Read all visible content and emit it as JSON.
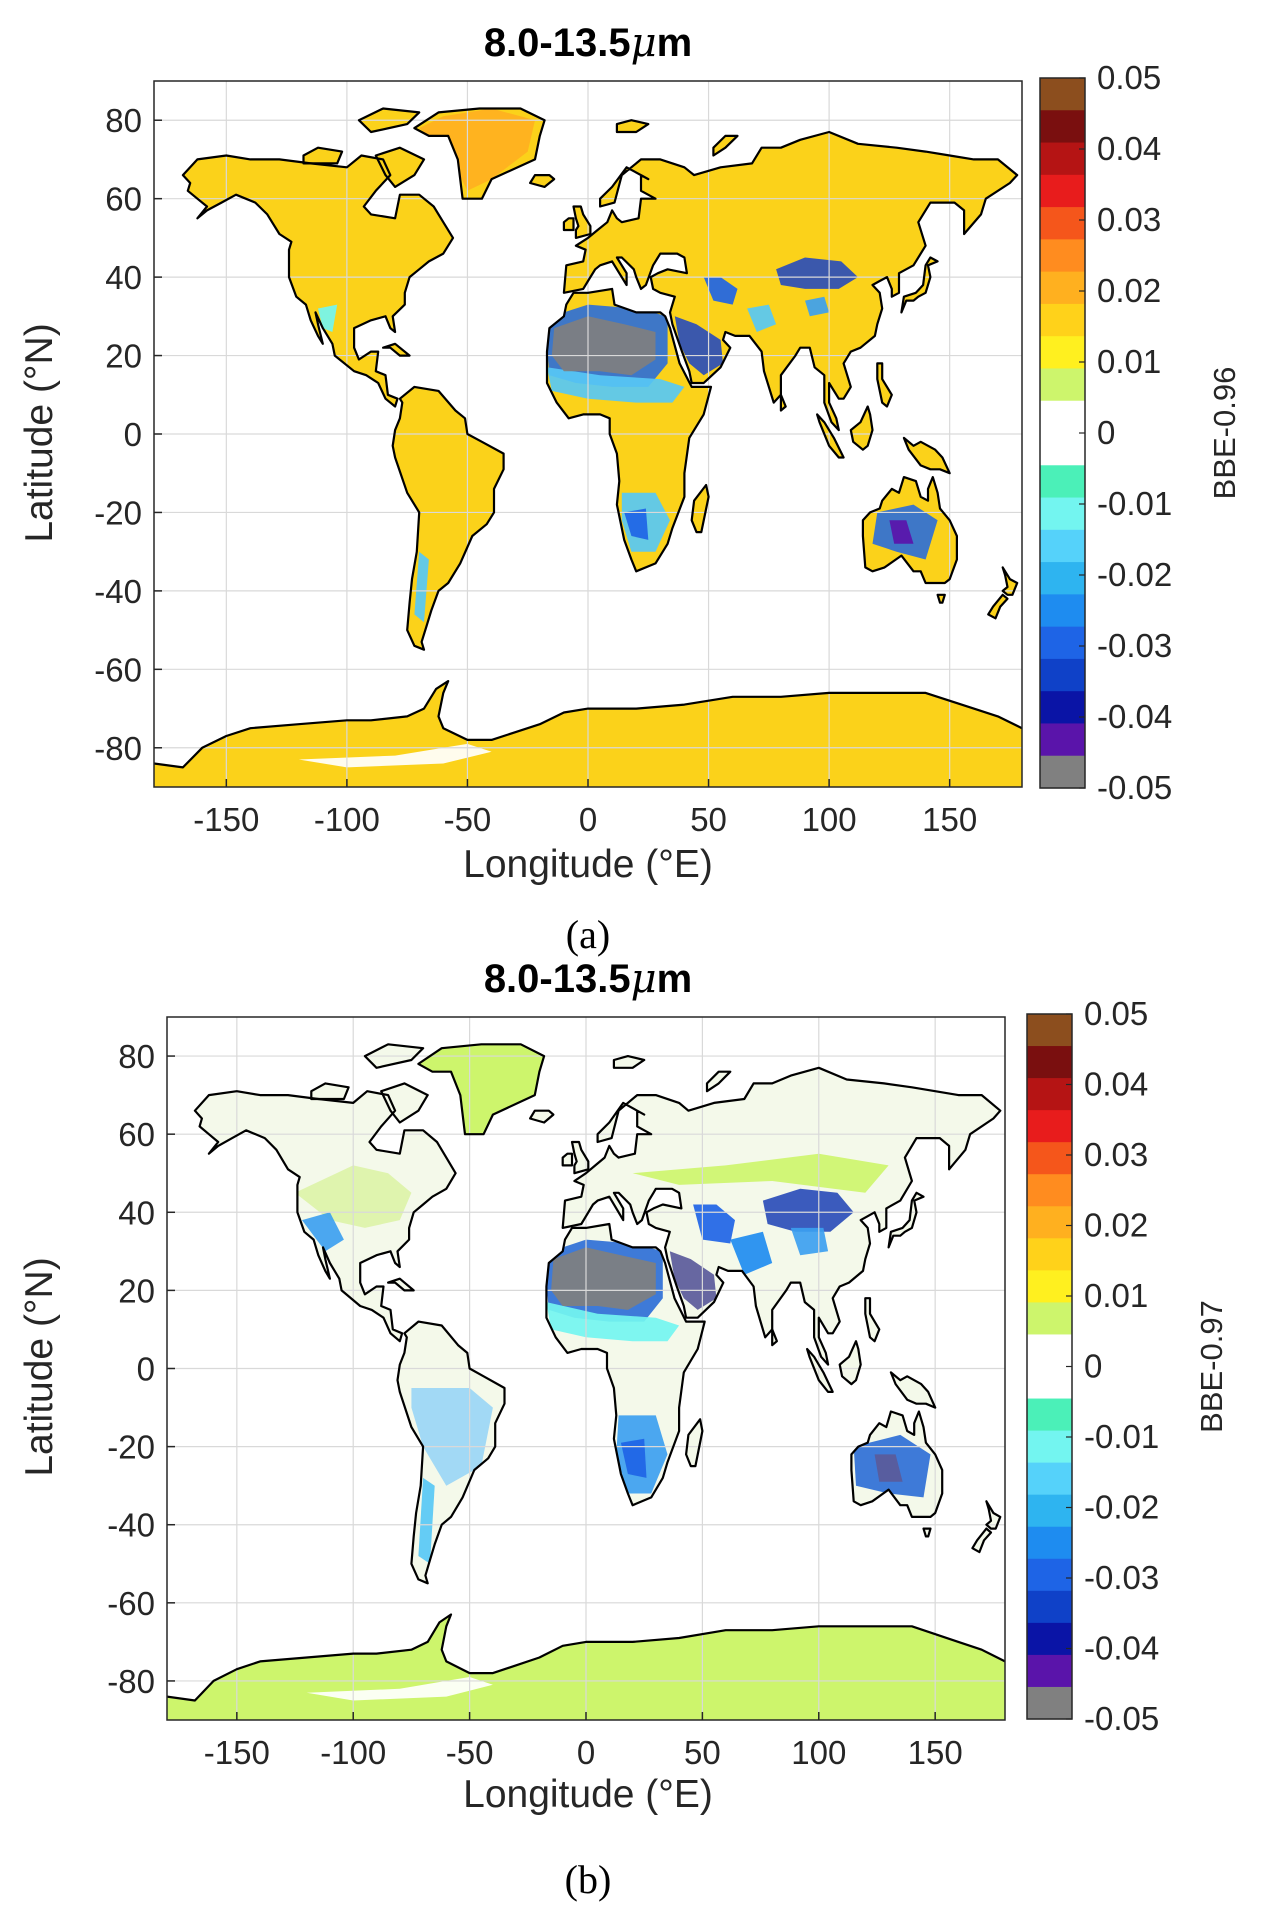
{
  "panels": [
    {
      "id": "a",
      "title": "8.0-13.5",
      "title_unit_symbol": "μ",
      "title_unit_letter": "m",
      "panel_label": "(a)",
      "colorbar_label": "BBE-0.96",
      "land_color": "#fbd21a",
      "antarctica_color": "#fbd21a"
    },
    {
      "id": "b",
      "title": "8.0-13.5",
      "title_unit_symbol": "μ",
      "title_unit_letter": "m",
      "panel_label": "(b)",
      "colorbar_label": "BBE-0.97",
      "land_color": "#f4f9ea",
      "antarctica_color": "#cdf56c"
    }
  ],
  "axes": {
    "xlabel": "Longitude (°E)",
    "ylabel": "Latitude (°N)",
    "xlim": [
      -180,
      180
    ],
    "ylim": [
      -90,
      90
    ],
    "xticks": [
      -150,
      -100,
      -50,
      0,
      50,
      100,
      150
    ],
    "yticks": [
      80,
      60,
      40,
      20,
      0,
      -20,
      -40,
      -60,
      -80
    ],
    "grid": true
  },
  "colorbar": {
    "range": [
      -0.05,
      0.05
    ],
    "tick_labels": [
      "0.05",
      "0.04",
      "0.03",
      "0.02",
      "0.01",
      "0",
      "-0.01",
      "-0.02",
      "-0.03",
      "-0.04",
      "-0.05"
    ],
    "colors_top_to_bottom": [
      "#8c4e1e",
      "#7a0f0f",
      "#b51414",
      "#e81c1c",
      "#f5561b",
      "#ff8c1f",
      "#ffb01f",
      "#ffd21a",
      "#fff01f",
      "#cdf56c",
      "#ffffff",
      "#ffffff",
      "#4bf0b8",
      "#73f5f0",
      "#55d2fa",
      "#2eb4f0",
      "#1e8cf0",
      "#1e64e6",
      "#0f41c8",
      "#0a14a6",
      "#5a14aa",
      "#808080"
    ]
  },
  "chart_data": [
    {
      "type": "heatmap",
      "title": "8.0-13.5μm",
      "xlabel": "Longitude (°E)",
      "ylabel": "Latitude (°N)",
      "xlim": [
        -180,
        180
      ],
      "ylim": [
        -90,
        90
      ],
      "colorbar_label": "BBE-0.96",
      "colorbar_range": [
        -0.05,
        0.05
      ],
      "regions": [
        {
          "region": "most land",
          "value": 0.015
        },
        {
          "region": "Antarctica",
          "value": 0.015
        },
        {
          "region": "Greenland",
          "value": 0.02
        },
        {
          "region": "Sahara",
          "value": -0.05
        },
        {
          "region": "Arabian Peninsula",
          "value": -0.035
        },
        {
          "region": "Taklimakan / Gobi",
          "value": -0.035
        },
        {
          "region": "Central Australia",
          "value": -0.035
        },
        {
          "region": "Sahel",
          "value": -0.02
        },
        {
          "region": "Southern Africa",
          "value": -0.02
        },
        {
          "region": "Patagonia",
          "value": -0.015
        }
      ]
    },
    {
      "type": "heatmap",
      "title": "8.0-13.5μm",
      "xlabel": "Longitude (°E)",
      "ylabel": "Latitude (°N)",
      "xlim": [
        -180,
        180
      ],
      "ylim": [
        -90,
        90
      ],
      "colorbar_label": "BBE-0.97",
      "colorbar_range": [
        -0.05,
        0.05
      ],
      "regions": [
        {
          "region": "most land",
          "value": 0.0
        },
        {
          "region": "Antarctica",
          "value": 0.005
        },
        {
          "region": "Greenland",
          "value": 0.005
        },
        {
          "region": "Sahara",
          "value": -0.05
        },
        {
          "region": "Arabian Peninsula",
          "value": -0.045
        },
        {
          "region": "Taklimakan / Gobi",
          "value": -0.04
        },
        {
          "region": "Central Australia",
          "value": -0.04
        },
        {
          "region": "Sahel",
          "value": -0.025
        },
        {
          "region": "Southern Africa",
          "value": -0.03
        },
        {
          "region": "South America",
          "value": -0.01
        },
        {
          "region": "Western USA",
          "value": -0.02
        }
      ]
    }
  ]
}
